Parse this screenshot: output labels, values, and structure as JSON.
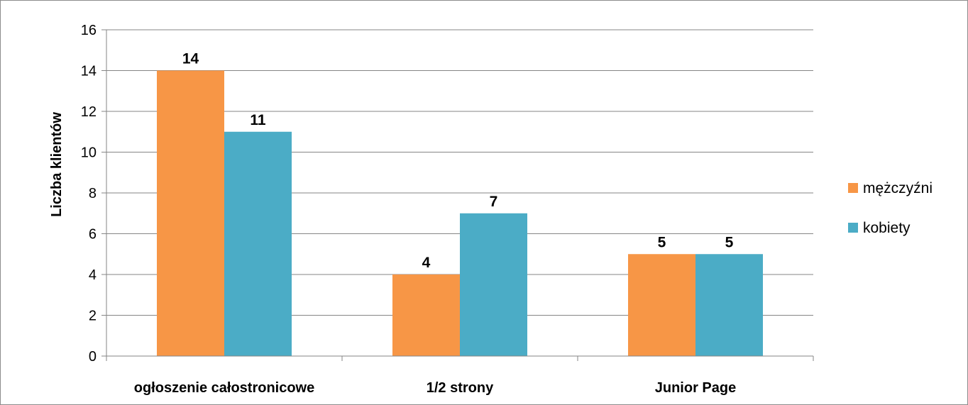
{
  "chart_data": {
    "type": "bar",
    "title": "",
    "xlabel": "",
    "ylabel": "Liczba klientów",
    "categories": [
      "ogłoszenie całostronicowe",
      "1/2 strony",
      "Junior Page"
    ],
    "series": [
      {
        "name": "mężczyźni",
        "values": [
          14,
          4,
          5
        ],
        "color": "#F79646"
      },
      {
        "name": "kobiety",
        "values": [
          11,
          7,
          5
        ],
        "color": "#4BACC6"
      }
    ],
    "ylim": [
      0,
      16
    ],
    "yticks": [
      0,
      2,
      4,
      6,
      8,
      10,
      12,
      14,
      16
    ],
    "grid": true,
    "legend_position": "right",
    "data_labels": true
  }
}
